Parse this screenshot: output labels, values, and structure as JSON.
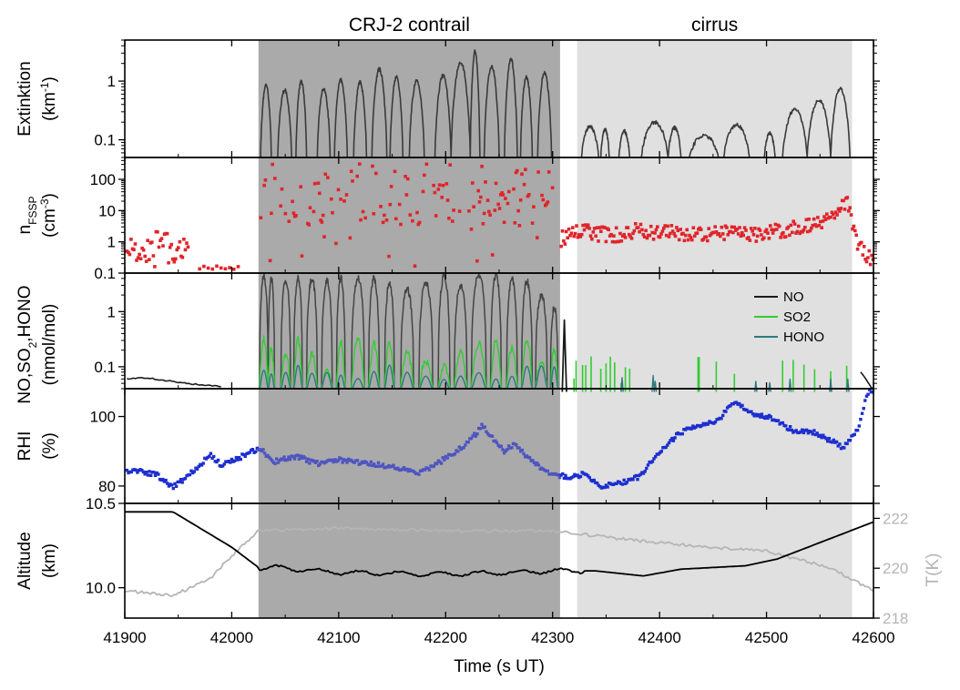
{
  "chart_data": {
    "type": "multi-panel time series",
    "xlabel": "Time (s UT)",
    "xlim": [
      41900,
      42600
    ],
    "xticks": [
      "41900",
      "42000",
      "42100",
      "42200",
      "42300",
      "42400",
      "42500",
      "42600"
    ],
    "regions": [
      {
        "label": "CRJ-2 contrail",
        "x": [
          42025,
          42307
        ],
        "color": "#aaaaaa"
      },
      {
        "label": "cirrus",
        "x": [
          42323,
          42580
        ],
        "color": "#e0e0e0"
      }
    ],
    "panels": [
      {
        "id": "extinction",
        "ylabel_line1": "Extinktion",
        "ylabel_line2_prefix": "(km",
        "ylabel_line2_sup": "-1",
        "ylabel_line2_suffix": ")",
        "yscale": "log",
        "ylim": [
          0.05,
          5
        ],
        "yticks": [
          "0.1",
          "1"
        ],
        "series": [
          {
            "name": "extinction",
            "color": "#3a3a3a"
          }
        ]
      },
      {
        "id": "nfssp",
        "ylabel_line1_main": "n",
        "ylabel_line1_sub": "FSSP",
        "ylabel_line2_prefix": "(cm",
        "ylabel_line2_sup": "-3",
        "ylabel_line2_suffix": ")",
        "yscale": "log",
        "ylim": [
          0.1,
          500
        ],
        "yticks": [
          "0.1",
          "1",
          "10",
          "100"
        ],
        "series": [
          {
            "name": "n_FSSP",
            "color": "#e0242a"
          }
        ]
      },
      {
        "id": "trace_gases",
        "ylabel_line1": "NO,SO",
        "ylabel_line1_sub": "2",
        "ylabel_line1_suffix": ",HONO",
        "ylabel_line2": "(nmol/mol)",
        "yscale": "log",
        "ylim": [
          0.04,
          5
        ],
        "yticks": [
          "0.1",
          "1"
        ],
        "legend": {
          "position": "top-right"
        },
        "series": [
          {
            "name": "NO",
            "color": "#1a1a1a"
          },
          {
            "name": "SO2",
            "color": "#33cc33"
          },
          {
            "name": "HONO",
            "color": "#2c7a80"
          }
        ]
      },
      {
        "id": "rhi",
        "ylabel_line1": "RHI",
        "ylabel_line2": "(%)",
        "yscale": "linear",
        "ylim": [
          75,
          108
        ],
        "yticks": [
          "80",
          "100"
        ],
        "series": [
          {
            "name": "RHI",
            "color": "#1c2ecf"
          }
        ]
      },
      {
        "id": "altitude",
        "ylabel_line1": "Altitude",
        "ylabel_line2": "(km)",
        "yscale": "linear",
        "ylim": [
          9.82,
          10.5
        ],
        "yticks": [
          "10.0",
          "10.5"
        ],
        "y2label": "T(K)",
        "y2lim": [
          218,
          222.6
        ],
        "y2ticks": [
          "218",
          "220",
          "222"
        ],
        "series": [
          {
            "name": "Altitude",
            "color": "#000000",
            "axis": "left"
          },
          {
            "name": "T",
            "color": "#b5b5b5",
            "axis": "right"
          }
        ]
      }
    ]
  }
}
